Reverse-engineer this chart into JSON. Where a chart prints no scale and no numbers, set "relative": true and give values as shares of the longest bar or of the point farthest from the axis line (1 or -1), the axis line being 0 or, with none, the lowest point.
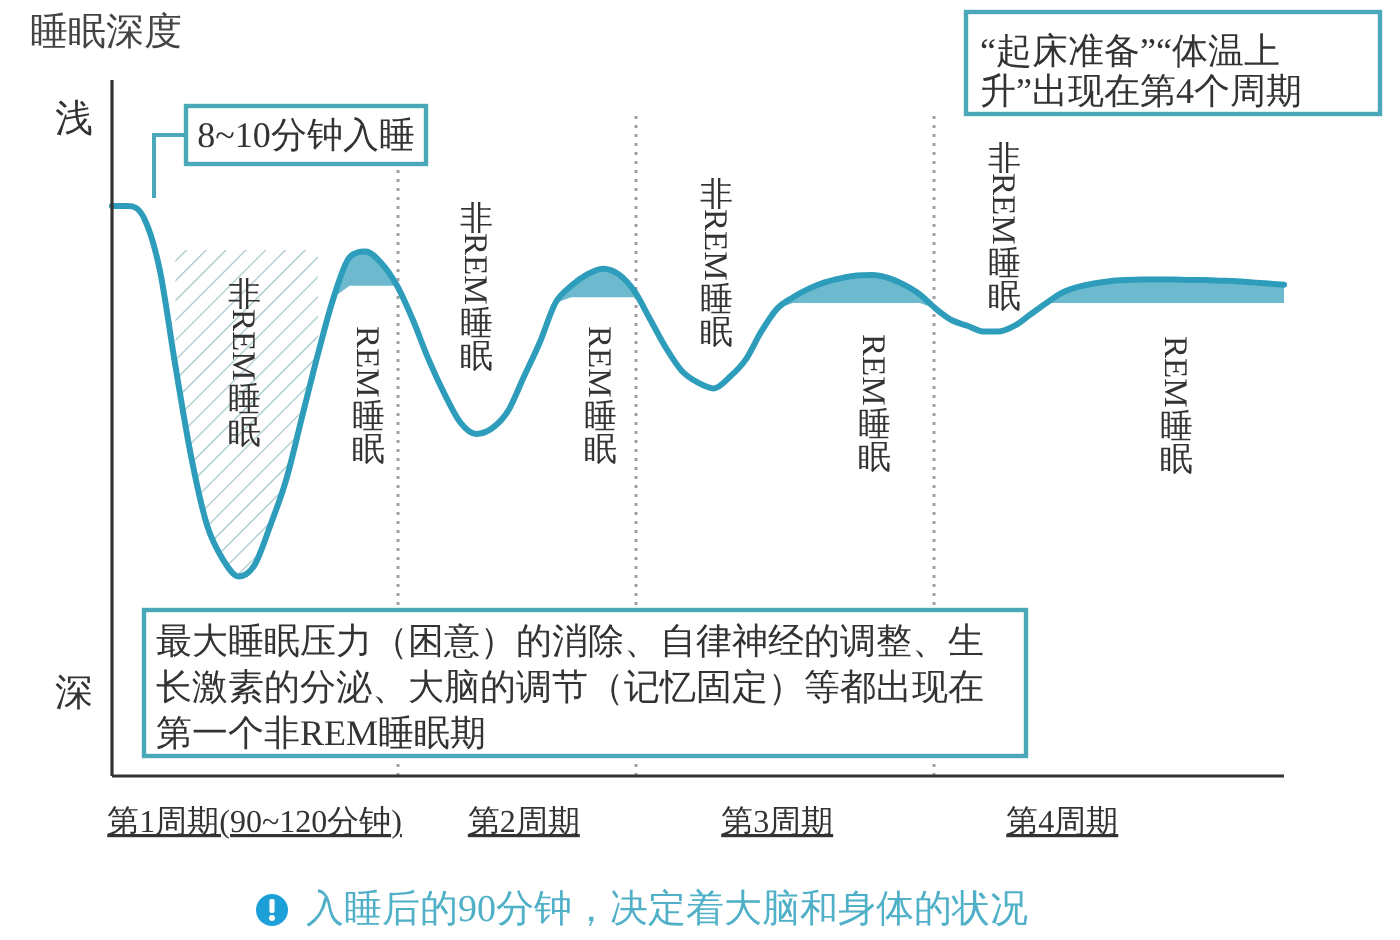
{
  "chart_data": {
    "type": "line",
    "relative": true,
    "ylabel": "睡眠深度",
    "categories": [
      null,
      null,
      null,
      null,
      null,
      null,
      null,
      null,
      null,
      "第1周期(90~120分钟)",
      null,
      null,
      null,
      null,
      null,
      null,
      null,
      null,
      null,
      null,
      null,
      null,
      null,
      null,
      null,
      null,
      "第2周期",
      null,
      null,
      null,
      null,
      null,
      null,
      null,
      null,
      null,
      null,
      null,
      null,
      null,
      null,
      null,
      "第3周期",
      null,
      null,
      null,
      null,
      null,
      null,
      null,
      null,
      null,
      null,
      null,
      null,
      null,
      null,
      null,
      null,
      null,
      "第4周期",
      null,
      null,
      null,
      null,
      null,
      null,
      null,
      null,
      null,
      null,
      null,
      null,
      null,
      null
    ],
    "series": [
      {
        "type": "line",
        "color": "#2e9dbb",
        "values": [
          1.0,
          1.0,
          0.98,
          0.89,
          0.72,
          0.56,
          0.44,
          0.38,
          0.35,
          0.37,
          0.44,
          0.52,
          0.63,
          0.74,
          0.84,
          0.91,
          0.92,
          0.9,
          0.86,
          0.8,
          0.73,
          0.67,
          0.62,
          0.6,
          0.61,
          0.64,
          0.7,
          0.76,
          0.83,
          0.86,
          0.88,
          0.89,
          0.88,
          0.85,
          0.8,
          0.75,
          0.71,
          0.69,
          0.68,
          0.7,
          0.73,
          0.78,
          0.82,
          0.84,
          0.855,
          0.866,
          0.873,
          0.878,
          0.879,
          0.874,
          0.862,
          0.845,
          0.82,
          0.8,
          0.79,
          0.78,
          0.78,
          0.79,
          0.81,
          0.83,
          0.848,
          0.858,
          0.864,
          0.868,
          0.87,
          0.871,
          0.871,
          0.871,
          0.87,
          0.87,
          0.869,
          0.868,
          0.866,
          0.864,
          0.862
        ],
        "lower": [
          null,
          null,
          null,
          null,
          null,
          null,
          null,
          null,
          null,
          null,
          null,
          null,
          null,
          null,
          0.84,
          0.86,
          0.86,
          0.86,
          0.86,
          null,
          null,
          null,
          null,
          null,
          null,
          null,
          null,
          null,
          0.83,
          0.84,
          0.84,
          0.84,
          0.84,
          0.84,
          null,
          null,
          null,
          null,
          null,
          null,
          null,
          null,
          0.82,
          0.83,
          0.83,
          0.83,
          0.83,
          0.83,
          0.83,
          0.83,
          0.83,
          0.83,
          0.82,
          null,
          null,
          null,
          null,
          null,
          0.81,
          0.83,
          0.83,
          0.83,
          0.83,
          0.83,
          0.83,
          0.83,
          0.83,
          0.83,
          0.83,
          0.83,
          0.83,
          0.83,
          0.83,
          0.83,
          0.83
        ],
        "upper": [
          null,
          null,
          null,
          null,
          null,
          null,
          null,
          null,
          null,
          null,
          null,
          null,
          null,
          null,
          0.84,
          0.91,
          0.92,
          0.9,
          0.86,
          null,
          null,
          null,
          null,
          null,
          null,
          null,
          null,
          null,
          0.83,
          0.86,
          0.88,
          0.89,
          0.88,
          0.85,
          null,
          null,
          null,
          null,
          null,
          null,
          null,
          null,
          0.82,
          0.84,
          0.855,
          0.866,
          0.873,
          0.878,
          0.879,
          0.874,
          0.862,
          0.845,
          0.82,
          null,
          null,
          null,
          null,
          null,
          0.81,
          0.83,
          0.848,
          0.858,
          0.864,
          0.868,
          0.87,
          0.871,
          0.871,
          0.871,
          0.87,
          0.87,
          0.869,
          0.868,
          0.866,
          0.864,
          0.862
        ]
      }
    ],
    "annotations": [
      "浅",
      "深",
      "8~10分钟入睡",
      "“起床准备”“体温上升”出现在第4个周期",
      "最大睡眠压力（困意）的消除、自律神经的调整、生长激素的分泌、大脑的调节（记忆固定）等都出现在第一个非REM睡眠期",
      "入睡后的90分钟，决定着大脑和身体的状况",
      "非REM睡眠",
      "REM睡眠",
      "非REM睡眠",
      "REM睡眠",
      "非REM睡眠",
      "REM睡眠",
      "非REM睡眠",
      "REM睡眠"
    ]
  }
}
